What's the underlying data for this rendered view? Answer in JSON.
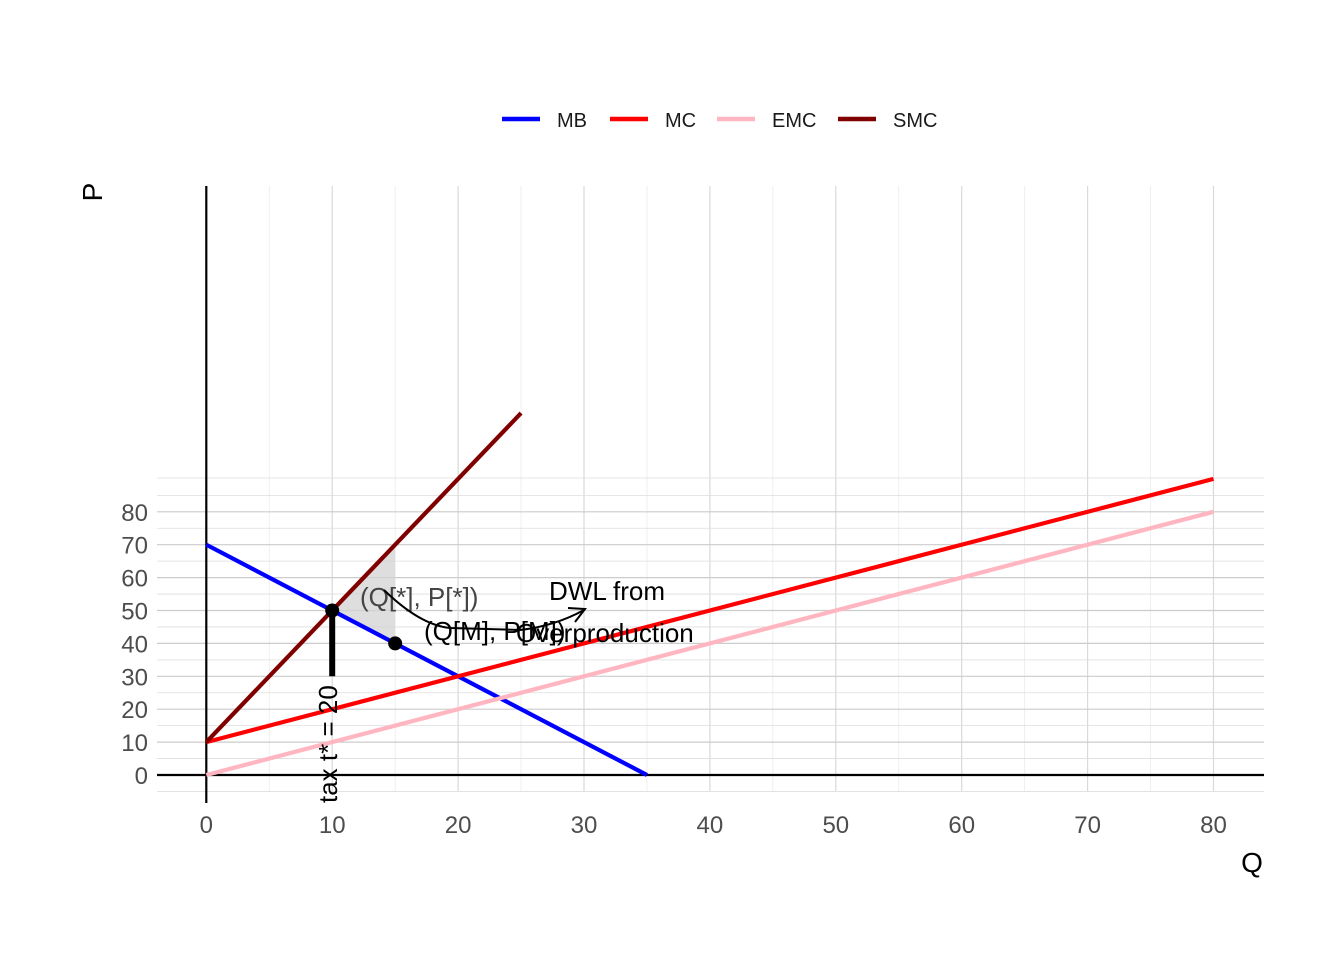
{
  "chart_data": {
    "type": "line",
    "xlabel": "Q",
    "ylabel": "P",
    "xlim": [
      -4,
      84
    ],
    "ylim": [
      -5,
      89
    ],
    "x_ticks": [
      0,
      10,
      20,
      30,
      40,
      50,
      60,
      70,
      80
    ],
    "y_ticks": [
      0,
      10,
      20,
      30,
      40,
      50,
      60,
      70,
      80
    ],
    "grid": true,
    "legend_position": "top",
    "series": [
      {
        "name": "MB",
        "color": "#0000ff",
        "points": [
          [
            0,
            70
          ],
          [
            35,
            0
          ]
        ]
      },
      {
        "name": "MC",
        "color": "#ff0000",
        "points": [
          [
            0,
            10
          ],
          [
            80,
            90
          ]
        ]
      },
      {
        "name": "EMC",
        "color": "#ffb6c1",
        "points": [
          [
            0,
            0
          ],
          [
            80,
            80
          ]
        ]
      },
      {
        "name": "SMC",
        "color": "#800000",
        "points": [
          [
            0,
            10
          ],
          [
            25,
            110
          ]
        ]
      }
    ],
    "points": [
      {
        "name": "optimum",
        "x": 10,
        "y": 50
      },
      {
        "name": "market",
        "x": 15,
        "y": 40
      }
    ],
    "dwl_region": [
      [
        10,
        50
      ],
      [
        15,
        70
      ],
      [
        15,
        40
      ]
    ],
    "tax_segment": {
      "x": 10,
      "y_from": 30,
      "y_to": 50
    },
    "annotations": {
      "optimum_label": "(Q[*], P[*])",
      "market_label": "(Q[M], P[M])",
      "dwl_line1": "DWL from",
      "dwl_line2": "Overproduction",
      "tax_label": "tax t* = 20"
    }
  }
}
